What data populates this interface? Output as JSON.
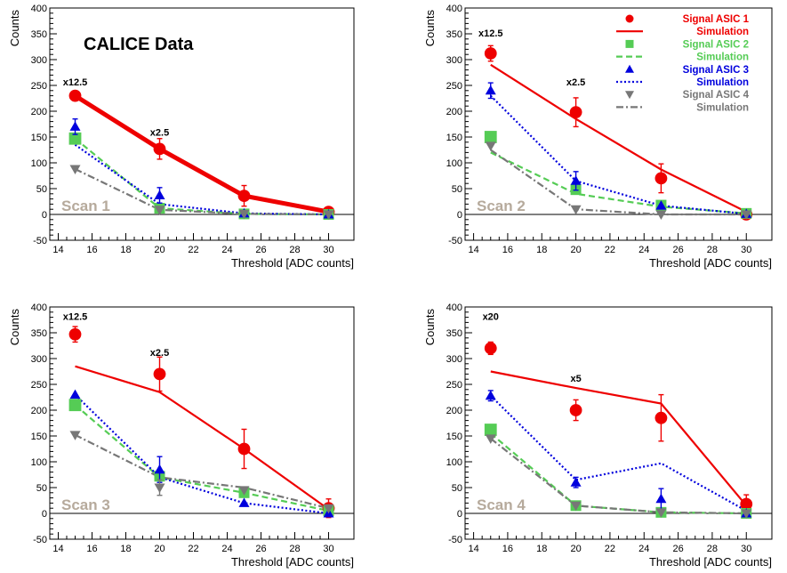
{
  "figure": {
    "header_text": "CALICE Data",
    "legend": [
      {
        "label": "Signal ASIC 1",
        "color": "#ee0000",
        "kind": "marker",
        "marker": "circle"
      },
      {
        "label": "Simulation",
        "color": "#ee0000",
        "kind": "line",
        "dash": "solid"
      },
      {
        "label": "Signal ASIC 2",
        "color": "#55cc55",
        "kind": "marker",
        "marker": "square"
      },
      {
        "label": "Simulation",
        "color": "#55cc55",
        "kind": "line",
        "dash": "dashed"
      },
      {
        "label": "Signal ASIC 3",
        "color": "#0000dd",
        "kind": "marker",
        "marker": "triangle-up"
      },
      {
        "label": "Simulation",
        "color": "#0000dd",
        "kind": "line",
        "dash": "dotted"
      },
      {
        "label": "Signal ASIC 4",
        "color": "#777777",
        "kind": "marker",
        "marker": "triangle-down"
      },
      {
        "label": "Simulation",
        "color": "#777777",
        "kind": "line",
        "dash": "dashdot"
      }
    ]
  },
  "chart_data": [
    {
      "type": "scatter",
      "panel_label": "Scan 1",
      "xlabel": "Threshold [ADC counts]",
      "ylabel": "Counts",
      "xlim": [
        13.5,
        31.5
      ],
      "ylim": [
        -50,
        400
      ],
      "xticks": [
        14,
        16,
        18,
        20,
        22,
        24,
        26,
        28,
        30
      ],
      "yticks": [
        -50,
        0,
        50,
        100,
        150,
        200,
        250,
        300,
        350,
        400
      ],
      "scale_annotations": [
        {
          "text": "x12.5",
          "x": 15,
          "y": 250
        },
        {
          "text": "x2.5",
          "x": 20,
          "y": 153
        }
      ],
      "series": [
        {
          "name": "Signal ASIC 1",
          "kind": "data",
          "color": "#ee0000",
          "marker": "circle",
          "x": [
            15,
            20,
            25,
            30
          ],
          "y": [
            230,
            127,
            36,
            5
          ],
          "err": [
            0,
            20,
            20,
            0
          ]
        },
        {
          "name": "Simulation",
          "kind": "sim",
          "color": "#ee0000",
          "dash": "solid",
          "width": 5,
          "x": [
            15,
            20,
            25,
            30
          ],
          "y": [
            230,
            127,
            36,
            5
          ]
        },
        {
          "name": "Signal ASIC 2",
          "kind": "data",
          "color": "#55cc55",
          "marker": "square",
          "x": [
            15,
            20,
            25,
            30
          ],
          "y": [
            147,
            12,
            1,
            0
          ],
          "err": [
            0,
            0,
            0,
            0
          ]
        },
        {
          "name": "Simulation",
          "kind": "sim",
          "color": "#55cc55",
          "dash": "dashed",
          "x": [
            15,
            20,
            25,
            30
          ],
          "y": [
            147,
            12,
            1,
            0
          ]
        },
        {
          "name": "Signal ASIC 3",
          "kind": "data",
          "color": "#0000dd",
          "marker": "triangle-up",
          "x": [
            15,
            20,
            25,
            30
          ],
          "y": [
            170,
            37,
            2,
            0
          ],
          "err": [
            15,
            15,
            0,
            0
          ]
        },
        {
          "name": "Simulation",
          "kind": "sim",
          "color": "#0000dd",
          "dash": "dotted",
          "x": [
            15,
            20,
            25,
            30
          ],
          "y": [
            135,
            20,
            2,
            0
          ]
        },
        {
          "name": "Signal ASIC 4",
          "kind": "data",
          "color": "#777777",
          "marker": "triangle-down",
          "x": [
            15,
            20,
            25,
            30
          ],
          "y": [
            88,
            9,
            1,
            0
          ],
          "err": [
            0,
            0,
            0,
            0
          ]
        },
        {
          "name": "Simulation",
          "kind": "sim",
          "color": "#777777",
          "dash": "dashdot",
          "x": [
            15,
            20,
            25,
            30
          ],
          "y": [
            88,
            9,
            1,
            0
          ]
        }
      ]
    },
    {
      "type": "scatter",
      "panel_label": "Scan 2",
      "xlabel": "Threshold [ADC counts]",
      "ylabel": "Counts",
      "xlim": [
        13.5,
        31.5
      ],
      "ylim": [
        -50,
        400
      ],
      "xticks": [
        14,
        16,
        18,
        20,
        22,
        24,
        26,
        28,
        30
      ],
      "yticks": [
        -50,
        0,
        50,
        100,
        150,
        200,
        250,
        300,
        350,
        400
      ],
      "scale_annotations": [
        {
          "text": "x12.5",
          "x": 15,
          "y": 345
        },
        {
          "text": "x2.5",
          "x": 20,
          "y": 250
        }
      ],
      "series": [
        {
          "name": "Signal ASIC 1",
          "kind": "data",
          "color": "#ee0000",
          "marker": "circle",
          "x": [
            15,
            20,
            25,
            30
          ],
          "y": [
            312,
            198,
            70,
            0
          ],
          "err": [
            15,
            28,
            28,
            0
          ]
        },
        {
          "name": "Simulation",
          "kind": "sim",
          "color": "#ee0000",
          "dash": "solid",
          "x": [
            15,
            20,
            25,
            30
          ],
          "y": [
            290,
            185,
            87,
            5
          ]
        },
        {
          "name": "Signal ASIC 2",
          "kind": "data",
          "color": "#55cc55",
          "marker": "square",
          "x": [
            15,
            20,
            25,
            30
          ],
          "y": [
            150,
            48,
            18,
            2
          ],
          "err": [
            0,
            0,
            0,
            0
          ]
        },
        {
          "name": "Simulation",
          "kind": "sim",
          "color": "#55cc55",
          "dash": "dashed",
          "x": [
            15,
            20,
            25,
            30
          ],
          "y": [
            120,
            40,
            15,
            2
          ]
        },
        {
          "name": "Signal ASIC 3",
          "kind": "data",
          "color": "#0000dd",
          "marker": "triangle-up",
          "x": [
            15,
            20,
            25,
            30
          ],
          "y": [
            240,
            65,
            17,
            1
          ],
          "err": [
            15,
            18,
            0,
            0
          ]
        },
        {
          "name": "Simulation",
          "kind": "sim",
          "color": "#0000dd",
          "dash": "dotted",
          "x": [
            15,
            20,
            25,
            30
          ],
          "y": [
            230,
            65,
            17,
            1
          ]
        },
        {
          "name": "Signal ASIC 4",
          "kind": "data",
          "color": "#777777",
          "marker": "triangle-down",
          "x": [
            15,
            20,
            25,
            30
          ],
          "y": [
            133,
            10,
            0,
            0
          ],
          "err": [
            0,
            0,
            0,
            0
          ]
        },
        {
          "name": "Simulation",
          "kind": "sim",
          "color": "#777777",
          "dash": "dashdot",
          "x": [
            15,
            20,
            25,
            30
          ],
          "y": [
            125,
            10,
            0,
            0
          ]
        }
      ]
    },
    {
      "type": "scatter",
      "panel_label": "Scan 3",
      "xlabel": "Threshold [ADC counts]",
      "ylabel": "Counts",
      "xlim": [
        13.5,
        31.5
      ],
      "ylim": [
        -50,
        400
      ],
      "xticks": [
        14,
        16,
        18,
        20,
        22,
        24,
        26,
        28,
        30
      ],
      "yticks": [
        -50,
        0,
        50,
        100,
        150,
        200,
        250,
        300,
        350,
        400
      ],
      "scale_annotations": [
        {
          "text": "x12.5",
          "x": 15,
          "y": 375
        },
        {
          "text": "x2.5",
          "x": 20,
          "y": 305
        }
      ],
      "series": [
        {
          "name": "Signal ASIC 1",
          "kind": "data",
          "color": "#ee0000",
          "marker": "circle",
          "x": [
            15,
            20,
            25,
            30
          ],
          "y": [
            347,
            270,
            125,
            10
          ],
          "err": [
            15,
            33,
            38,
            18
          ]
        },
        {
          "name": "Simulation",
          "kind": "sim",
          "color": "#ee0000",
          "dash": "solid",
          "x": [
            15,
            20,
            25,
            30
          ],
          "y": [
            285,
            235,
            125,
            8
          ]
        },
        {
          "name": "Signal ASIC 2",
          "kind": "data",
          "color": "#55cc55",
          "marker": "square",
          "x": [
            15,
            20,
            25,
            30
          ],
          "y": [
            210,
            72,
            40,
            5
          ],
          "err": [
            0,
            0,
            0,
            0
          ]
        },
        {
          "name": "Simulation",
          "kind": "sim",
          "color": "#55cc55",
          "dash": "dashed",
          "x": [
            15,
            20,
            25,
            30
          ],
          "y": [
            210,
            70,
            40,
            5
          ]
        },
        {
          "name": "Signal ASIC 3",
          "kind": "data",
          "color": "#0000dd",
          "marker": "triangle-up",
          "x": [
            15,
            20,
            25,
            30
          ],
          "y": [
            230,
            85,
            20,
            0
          ],
          "err": [
            0,
            25,
            0,
            0
          ]
        },
        {
          "name": "Simulation",
          "kind": "sim",
          "color": "#0000dd",
          "dash": "dotted",
          "x": [
            15,
            20,
            25,
            30
          ],
          "y": [
            230,
            70,
            20,
            0
          ]
        },
        {
          "name": "Signal ASIC 4",
          "kind": "data",
          "color": "#777777",
          "marker": "triangle-down",
          "x": [
            15,
            20,
            25,
            30
          ],
          "y": [
            152,
            50,
            45,
            10
          ],
          "err": [
            0,
            15,
            0,
            0
          ]
        },
        {
          "name": "Simulation",
          "kind": "sim",
          "color": "#777777",
          "dash": "dashdot",
          "x": [
            15,
            20,
            25,
            30
          ],
          "y": [
            152,
            70,
            50,
            10
          ]
        }
      ]
    },
    {
      "type": "scatter",
      "panel_label": "Scan 4",
      "xlabel": "Threshold [ADC counts]",
      "ylabel": "Counts",
      "xlim": [
        13.5,
        31.5
      ],
      "ylim": [
        -50,
        400
      ],
      "xticks": [
        14,
        16,
        18,
        20,
        22,
        24,
        26,
        28,
        30
      ],
      "yticks": [
        -50,
        0,
        50,
        100,
        150,
        200,
        250,
        300,
        350,
        400
      ],
      "scale_annotations": [
        {
          "text": "x20",
          "x": 15,
          "y": 375
        },
        {
          "text": "x5",
          "x": 20,
          "y": 255
        }
      ],
      "series": [
        {
          "name": "Signal ASIC 1",
          "kind": "data",
          "color": "#ee0000",
          "marker": "circle",
          "x": [
            15,
            20,
            25,
            30
          ],
          "y": [
            320,
            200,
            185,
            18
          ],
          "err": [
            12,
            20,
            45,
            18
          ]
        },
        {
          "name": "Simulation",
          "kind": "sim",
          "color": "#ee0000",
          "dash": "solid",
          "x": [
            15,
            20,
            25,
            30
          ],
          "y": [
            275,
            243,
            213,
            15
          ]
        },
        {
          "name": "Signal ASIC 2",
          "kind": "data",
          "color": "#55cc55",
          "marker": "square",
          "x": [
            15,
            20,
            25,
            30
          ],
          "y": [
            162,
            15,
            2,
            0
          ],
          "err": [
            0,
            0,
            0,
            0
          ]
        },
        {
          "name": "Simulation",
          "kind": "sim",
          "color": "#55cc55",
          "dash": "dashed",
          "x": [
            15,
            20,
            25,
            30
          ],
          "y": [
            155,
            15,
            2,
            0
          ]
        },
        {
          "name": "Signal ASIC 3",
          "kind": "data",
          "color": "#0000dd",
          "marker": "triangle-up",
          "x": [
            15,
            20,
            25,
            30
          ],
          "y": [
            228,
            60,
            28,
            0
          ],
          "err": [
            10,
            10,
            20,
            0
          ]
        },
        {
          "name": "Simulation",
          "kind": "sim",
          "color": "#0000dd",
          "dash": "dotted",
          "x": [
            15,
            20,
            25,
            30
          ],
          "y": [
            228,
            65,
            97,
            5
          ]
        },
        {
          "name": "Signal ASIC 4",
          "kind": "data",
          "color": "#777777",
          "marker": "triangle-down",
          "x": [
            15,
            20,
            25,
            30
          ],
          "y": [
            145,
            15,
            2,
            0
          ],
          "err": [
            0,
            0,
            0,
            0
          ]
        },
        {
          "name": "Simulation",
          "kind": "sim",
          "color": "#777777",
          "dash": "dashdot",
          "x": [
            15,
            20,
            25,
            30
          ],
          "y": [
            145,
            15,
            2,
            0
          ]
        }
      ]
    }
  ]
}
